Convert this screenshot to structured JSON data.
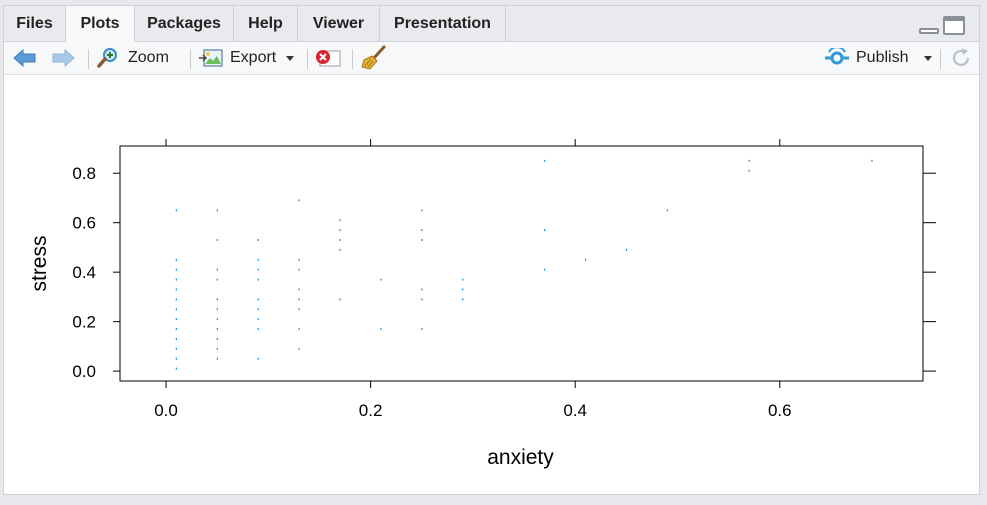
{
  "tabs": [
    {
      "label": "Files",
      "active": false
    },
    {
      "label": "Plots",
      "active": true
    },
    {
      "label": "Packages",
      "active": false
    },
    {
      "label": "Help",
      "active": false
    },
    {
      "label": "Viewer",
      "active": false
    },
    {
      "label": "Presentation",
      "active": false
    }
  ],
  "toolbar": {
    "zoom_label": "Zoom",
    "export_label": "Export",
    "publish_label": "Publish"
  },
  "colors": {
    "point": "#1f8fd6",
    "arrow_back": "#5b9bd5",
    "arrow_forward": "#a9c9e8",
    "publish_accent": "#2f9bd7",
    "remove_red": "#d9232e"
  },
  "chart_data": {
    "type": "scatter",
    "xlabel": "anxiety",
    "ylabel": "stress",
    "xlim": [
      -0.045,
      0.74
    ],
    "ylim": [
      -0.04,
      0.91
    ],
    "xticks": [
      0.0,
      0.2,
      0.4,
      0.6
    ],
    "xtick_labels": [
      "0.0",
      "0.2",
      "0.4",
      "0.6"
    ],
    "yticks": [
      0.0,
      0.2,
      0.4,
      0.6,
      0.8
    ],
    "ytick_labels": [
      "0.0",
      "0.2",
      "0.4",
      "0.6",
      "0.8"
    ],
    "points": [
      [
        0.01,
        0.65
      ],
      [
        0.01,
        0.45
      ],
      [
        0.01,
        0.41
      ],
      [
        0.01,
        0.37
      ],
      [
        0.01,
        0.33
      ],
      [
        0.01,
        0.29
      ],
      [
        0.01,
        0.25
      ],
      [
        0.01,
        0.21
      ],
      [
        0.01,
        0.17
      ],
      [
        0.01,
        0.13
      ],
      [
        0.01,
        0.09
      ],
      [
        0.01,
        0.05
      ],
      [
        0.01,
        0.01
      ],
      [
        0.05,
        0.65
      ],
      [
        0.05,
        0.53
      ],
      [
        0.05,
        0.41
      ],
      [
        0.05,
        0.37
      ],
      [
        0.05,
        0.29
      ],
      [
        0.05,
        0.25
      ],
      [
        0.05,
        0.21
      ],
      [
        0.05,
        0.17
      ],
      [
        0.05,
        0.13
      ],
      [
        0.05,
        0.09
      ],
      [
        0.05,
        0.05
      ],
      [
        0.09,
        0.53
      ],
      [
        0.09,
        0.45
      ],
      [
        0.09,
        0.41
      ],
      [
        0.09,
        0.37
      ],
      [
        0.09,
        0.29
      ],
      [
        0.09,
        0.25
      ],
      [
        0.09,
        0.21
      ],
      [
        0.09,
        0.17
      ],
      [
        0.09,
        0.05
      ],
      [
        0.13,
        0.69
      ],
      [
        0.13,
        0.45
      ],
      [
        0.13,
        0.41
      ],
      [
        0.13,
        0.33
      ],
      [
        0.13,
        0.29
      ],
      [
        0.13,
        0.25
      ],
      [
        0.13,
        0.17
      ],
      [
        0.13,
        0.09
      ],
      [
        0.17,
        0.61
      ],
      [
        0.17,
        0.57
      ],
      [
        0.17,
        0.53
      ],
      [
        0.17,
        0.49
      ],
      [
        0.17,
        0.29
      ],
      [
        0.21,
        0.37
      ],
      [
        0.21,
        0.17
      ],
      [
        0.25,
        0.65
      ],
      [
        0.25,
        0.57
      ],
      [
        0.25,
        0.53
      ],
      [
        0.25,
        0.33
      ],
      [
        0.25,
        0.29
      ],
      [
        0.25,
        0.17
      ],
      [
        0.29,
        0.37
      ],
      [
        0.29,
        0.33
      ],
      [
        0.29,
        0.29
      ],
      [
        0.37,
        0.85
      ],
      [
        0.37,
        0.57
      ],
      [
        0.37,
        0.41
      ],
      [
        0.41,
        0.45
      ],
      [
        0.45,
        0.49
      ],
      [
        0.49,
        0.65
      ],
      [
        0.57,
        0.85
      ],
      [
        0.57,
        0.81
      ],
      [
        0.69,
        0.85
      ]
    ],
    "grid": false,
    "legend": "none"
  }
}
